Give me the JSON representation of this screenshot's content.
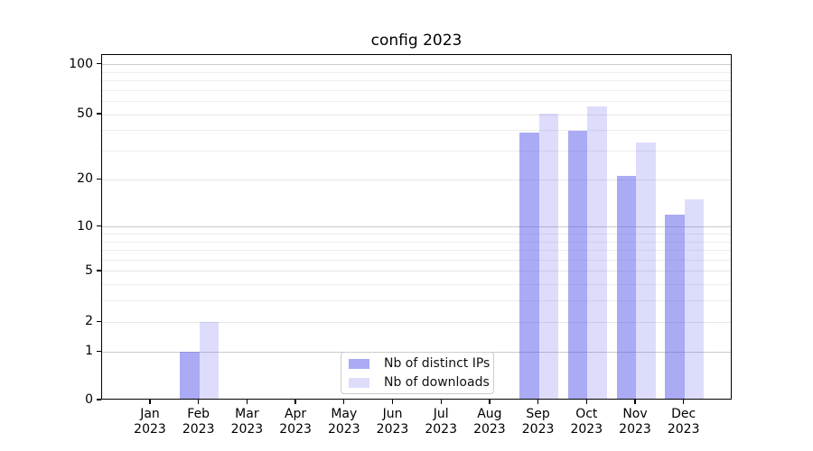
{
  "figure": {
    "title": "config 2023"
  },
  "legend": {
    "items": [
      "Nb of distinct IPs",
      "Nb of downloads"
    ]
  },
  "chart_data": {
    "type": "bar",
    "title": "config 2023",
    "categories": [
      "Jan 2023",
      "Feb 2023",
      "Mar 2023",
      "Apr 2023",
      "May 2023",
      "Jun 2023",
      "Jul 2023",
      "Aug 2023",
      "Sep 2023",
      "Oct 2023",
      "Nov 2023",
      "Dec 2023"
    ],
    "series": [
      {
        "name": "Nb of distinct IPs",
        "color": "rgba(85,85,235,0.5)",
        "color_hex_on_white": "#aaaaf5",
        "values": [
          0,
          1,
          0,
          0,
          0,
          0,
          0,
          0,
          39,
          40,
          21,
          12
        ]
      },
      {
        "name": "Nb of downloads",
        "color": "rgba(85,85,235,0.2)",
        "color_hex_on_white": "#ddddfa",
        "values": [
          0,
          2,
          0,
          0,
          0,
          0,
          0,
          0,
          51,
          56,
          34,
          15
        ]
      }
    ],
    "xlabel": "",
    "ylabel": "",
    "yscale": "log1p",
    "ylim": [
      0,
      110
    ],
    "y_tick_values": [
      0,
      1,
      2,
      5,
      10,
      20,
      50,
      100
    ],
    "y_tick_labels": [
      "0",
      "1",
      "2",
      "5",
      "10",
      "20",
      "50",
      "100"
    ],
    "y_major_gridline_values": [
      1,
      10,
      100
    ],
    "y_labeled_minor_values": [
      2,
      5,
      20,
      50
    ],
    "y_minor_gridline_values": [
      3,
      4,
      6,
      7,
      8,
      9,
      30,
      40,
      60,
      70,
      80,
      90
    ],
    "grid": "horizontal",
    "legend_position": "lower center",
    "colors": {
      "major_gridline": "#cbcbcb",
      "minor_gridline": "#ededed",
      "labeled_minor_gridline": "#e7e7e7",
      "spine": "#000000",
      "background": "#ffffff"
    }
  }
}
